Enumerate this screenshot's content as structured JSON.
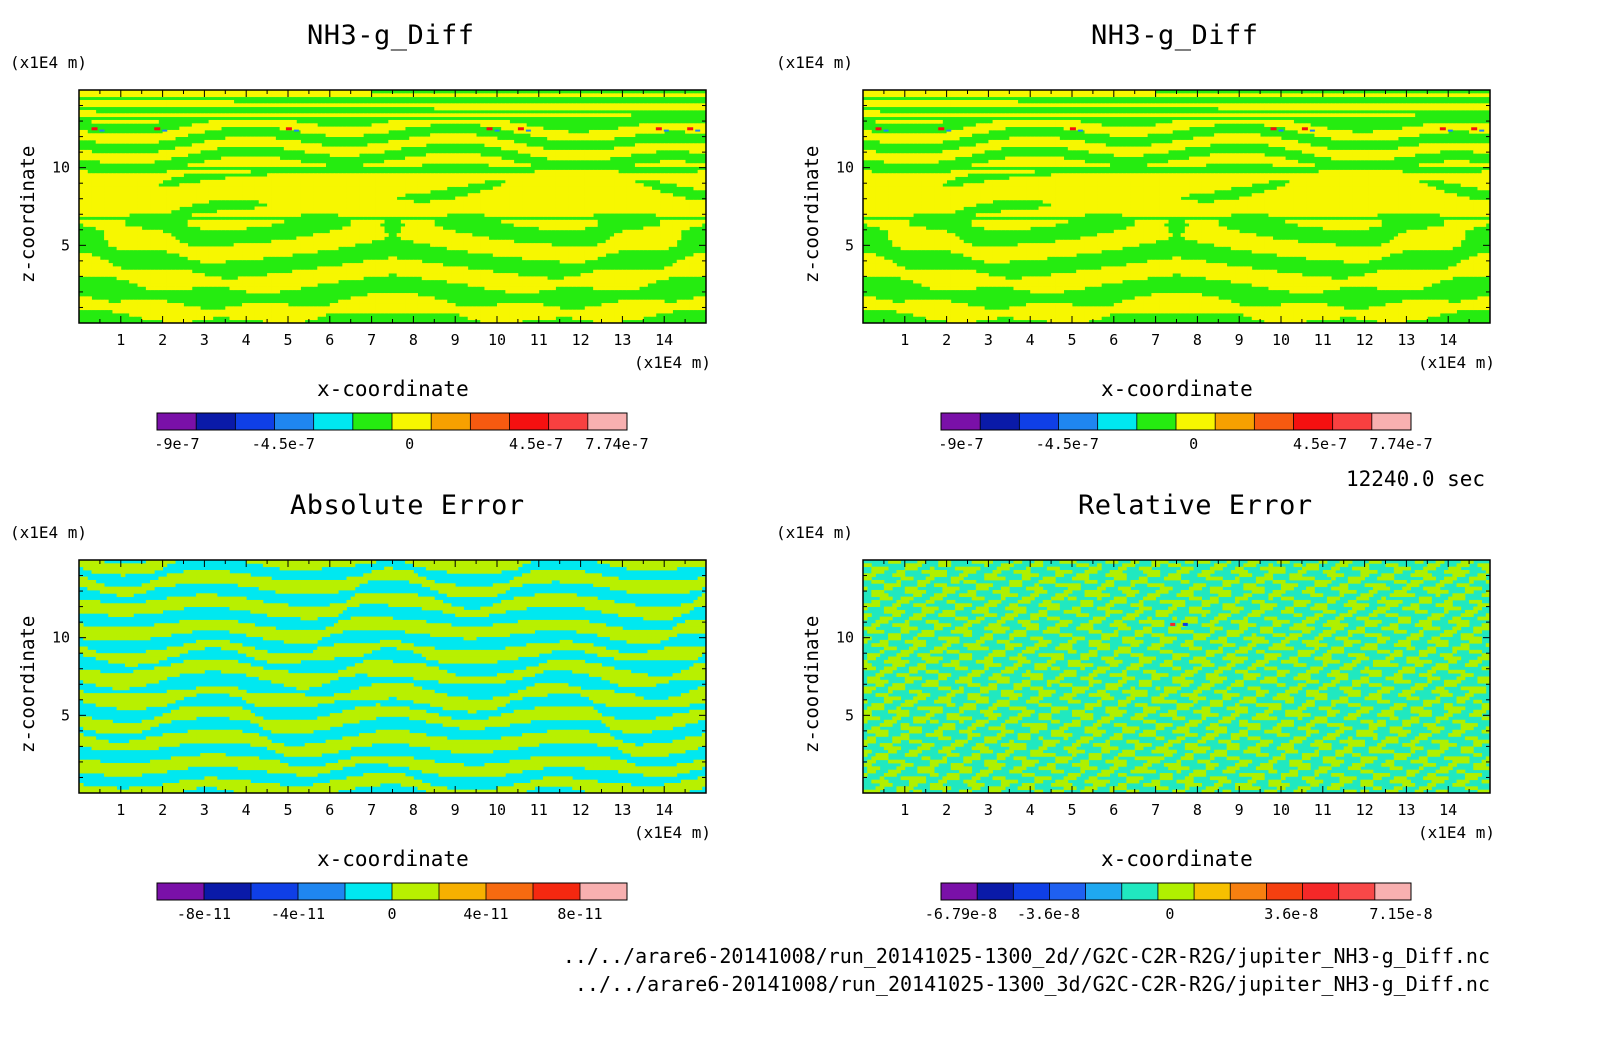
{
  "time_label": "12240.0 sec",
  "footer": {
    "line1": "../../arare6-20141008/run_20141025-1300_2d//G2C-C2R-R2G/jupiter_NH3-g_Diff.nc",
    "line2": "../../arare6-20141008/run_20141025-1300_3d/G2C-C2R-R2G/jupiter_NH3-g_Diff.nc"
  },
  "axis_unit": "(x1E4 m)",
  "colors": {
    "main_palette": [
      "#7a10a8",
      "#0a1aa8",
      "#0f3fe6",
      "#1f86f0",
      "#00e8f0",
      "#25ec10",
      "#f7f700",
      "#f7a000",
      "#f75a10",
      "#f51010",
      "#f84040",
      "#f8b0b0"
    ],
    "abs_palette": [
      "#7a10a8",
      "#0a1aa8",
      "#0f3fe6",
      "#1f86f0",
      "#00e8f0",
      "#b8f000",
      "#f7b000",
      "#f76a10",
      "#f52810",
      "#f8b0b0"
    ],
    "rel_palette": [
      "#7a10a8",
      "#0a1aa8",
      "#0f3fe6",
      "#1f60f0",
      "#1fa8f0",
      "#20e8c0",
      "#b0f000",
      "#f7c000",
      "#f78010",
      "#f54010",
      "#f52828",
      "#f84848",
      "#f8b0b0"
    ]
  },
  "chart_data": [
    {
      "type": "heatmap",
      "title": "NH3-g_Diff",
      "xlabel": "x-coordinate",
      "ylabel": "z-coordinate",
      "x_unit": "(x1E4 m)",
      "y_unit": "(x1E4 m)",
      "xlim": [
        0,
        15
      ],
      "ylim": [
        0,
        15
      ],
      "x_ticks": [
        1,
        2,
        3,
        4,
        5,
        6,
        7,
        8,
        9,
        10,
        11,
        12,
        13,
        14
      ],
      "y_ticks": [
        5,
        10
      ],
      "colorbar": {
        "range": [
          -9e-07,
          7.74e-07
        ],
        "labels": [
          "-9e-7",
          "-4.5e-7",
          "0",
          "4.5e-7",
          "7.74e-7"
        ],
        "palette": "main_palette"
      }
    },
    {
      "type": "heatmap",
      "title": "NH3-g_Diff",
      "xlabel": "x-coordinate",
      "ylabel": "z-coordinate",
      "x_unit": "(x1E4 m)",
      "y_unit": "(x1E4 m)",
      "xlim": [
        0,
        15
      ],
      "ylim": [
        0,
        15
      ],
      "x_ticks": [
        1,
        2,
        3,
        4,
        5,
        6,
        7,
        8,
        9,
        10,
        11,
        12,
        13,
        14
      ],
      "y_ticks": [
        5,
        10
      ],
      "colorbar": {
        "range": [
          -9e-07,
          7.74e-07
        ],
        "labels": [
          "-9e-7",
          "-4.5e-7",
          "0",
          "4.5e-7",
          "7.74e-7"
        ],
        "palette": "main_palette"
      }
    },
    {
      "type": "heatmap",
      "title": "Absolute Error",
      "xlabel": "x-coordinate",
      "ylabel": "z-coordinate",
      "x_unit": "(x1E4 m)",
      "y_unit": "(x1E4 m)",
      "xlim": [
        0,
        15
      ],
      "ylim": [
        0,
        15
      ],
      "x_ticks": [
        1,
        2,
        3,
        4,
        5,
        6,
        7,
        8,
        9,
        10,
        11,
        12,
        13,
        14
      ],
      "y_ticks": [
        5,
        10
      ],
      "colorbar": {
        "range": [
          -1e-10,
          1e-10
        ],
        "labels": [
          "-8e-11",
          "-4e-11",
          "0",
          "4e-11",
          "8e-11"
        ],
        "palette": "abs_palette"
      }
    },
    {
      "type": "heatmap",
      "title": "Relative Error",
      "xlabel": "x-coordinate",
      "ylabel": "z-coordinate",
      "x_unit": "(x1E4 m)",
      "y_unit": "(x1E4 m)",
      "xlim": [
        0,
        15
      ],
      "ylim": [
        0,
        15
      ],
      "x_ticks": [
        1,
        2,
        3,
        4,
        5,
        6,
        7,
        8,
        9,
        10,
        11,
        12,
        13,
        14
      ],
      "y_ticks": [
        5,
        10
      ],
      "colorbar": {
        "range": [
          -6.79e-08,
          7.15e-08
        ],
        "labels": [
          "-6.79e-8",
          "-3.6e-8",
          "0",
          "3.6e-8",
          "7.15e-8"
        ],
        "palette": "rel_palette"
      }
    }
  ]
}
